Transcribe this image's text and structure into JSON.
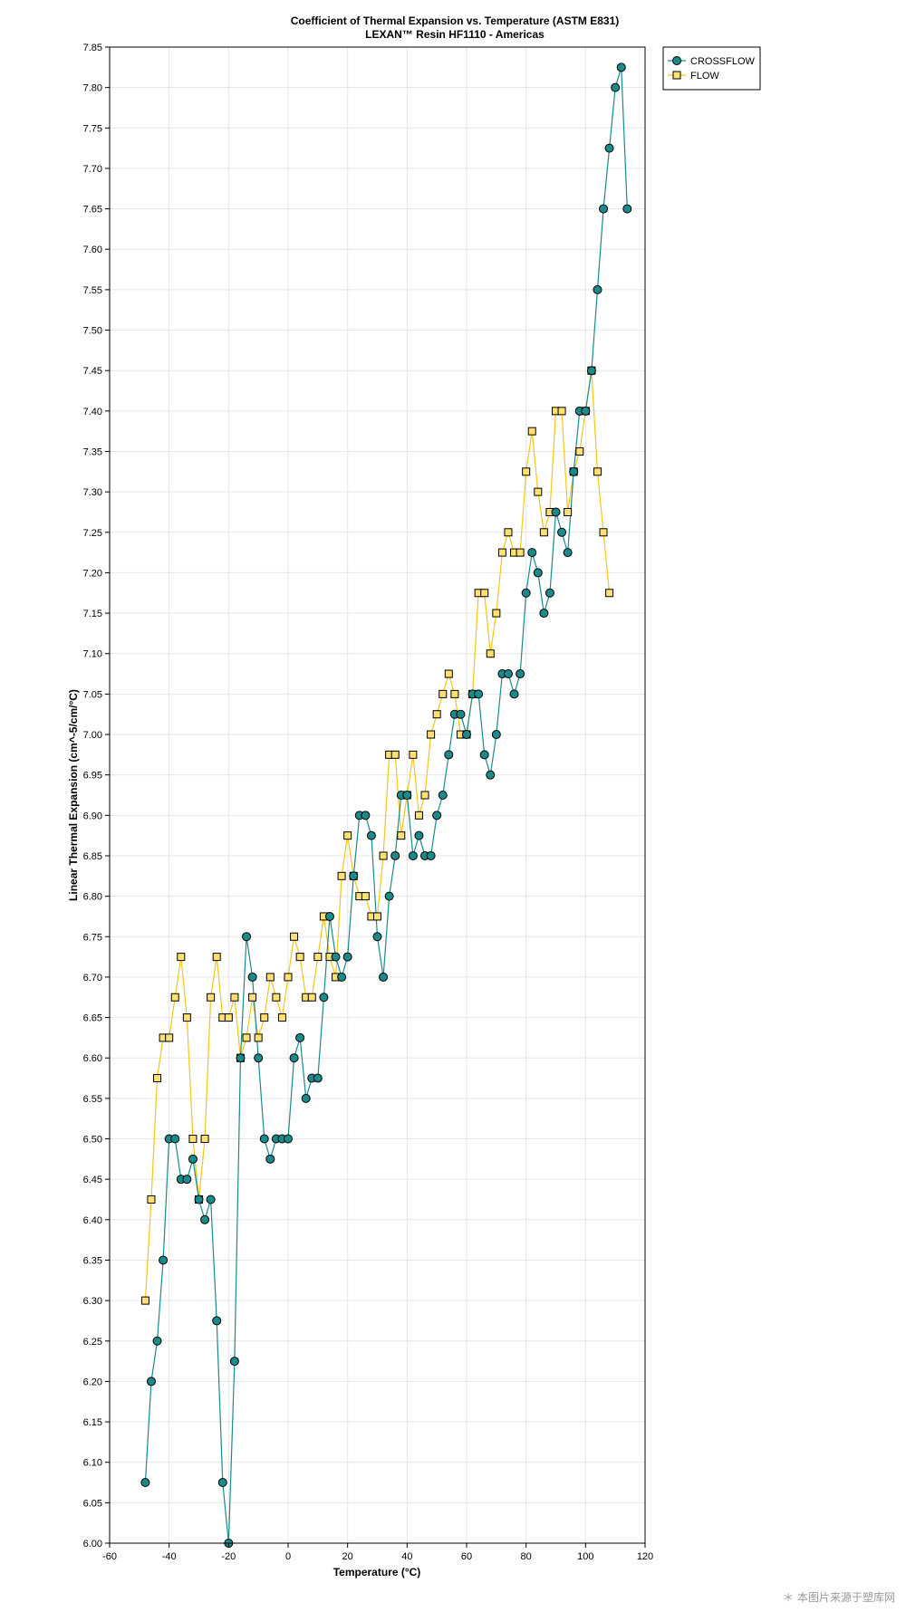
{
  "chart_data": {
    "type": "line",
    "title": "Coefficient of Thermal Expansion vs. Temperature (ASTM E831)",
    "subtitle": "LEXAN™ Resin HF1110 - Americas",
    "xlabel": "Temperature (°C)",
    "ylabel": "Linear Thermal Expansion (cm^-5/cm/°C)",
    "xlim": [
      -60,
      120
    ],
    "ylim": [
      6.0,
      7.85
    ],
    "x_ticks": [
      -60,
      -40,
      -20,
      0,
      20,
      40,
      60,
      80,
      100,
      120
    ],
    "y_ticks": [
      6.0,
      6.05,
      6.1,
      6.15,
      6.2,
      6.25,
      6.3,
      6.35,
      6.4,
      6.45,
      6.5,
      6.55,
      6.6,
      6.65,
      6.7,
      6.75,
      6.8,
      6.85,
      6.9,
      6.95,
      7.0,
      7.05,
      7.1,
      7.15,
      7.2,
      7.25,
      7.3,
      7.35,
      7.4,
      7.45,
      7.5,
      7.55,
      7.6,
      7.65,
      7.7,
      7.75,
      7.8,
      7.85
    ],
    "grid": true,
    "legend_position": "top-right outside",
    "series": [
      {
        "name": "CROSSFLOW",
        "color": "#1a8a8a",
        "marker": "circle",
        "points": [
          [
            -48,
            6.075
          ],
          [
            -46,
            6.2
          ],
          [
            -44,
            6.25
          ],
          [
            -42,
            6.35
          ],
          [
            -40,
            6.5
          ],
          [
            -38,
            6.5
          ],
          [
            -36,
            6.45
          ],
          [
            -34,
            6.45
          ],
          [
            -32,
            6.475
          ],
          [
            -30,
            6.425
          ],
          [
            -28,
            6.4
          ],
          [
            -26,
            6.425
          ],
          [
            -24,
            6.275
          ],
          [
            -22,
            6.075
          ],
          [
            -20,
            6.0
          ],
          [
            -18,
            6.225
          ],
          [
            -16,
            6.6
          ],
          [
            -14,
            6.75
          ],
          [
            -12,
            6.7
          ],
          [
            -10,
            6.6
          ],
          [
            -8,
            6.5
          ],
          [
            -6,
            6.475
          ],
          [
            -4,
            6.5
          ],
          [
            -2,
            6.5
          ],
          [
            0,
            6.5
          ],
          [
            2,
            6.6
          ],
          [
            4,
            6.625
          ],
          [
            6,
            6.55
          ],
          [
            8,
            6.575
          ],
          [
            10,
            6.575
          ],
          [
            12,
            6.675
          ],
          [
            14,
            6.775
          ],
          [
            16,
            6.725
          ],
          [
            18,
            6.7
          ],
          [
            20,
            6.725
          ],
          [
            22,
            6.825
          ],
          [
            24,
            6.9
          ],
          [
            26,
            6.9
          ],
          [
            28,
            6.875
          ],
          [
            30,
            6.75
          ],
          [
            32,
            6.7
          ],
          [
            34,
            6.8
          ],
          [
            36,
            6.85
          ],
          [
            38,
            6.925
          ],
          [
            40,
            6.925
          ],
          [
            42,
            6.85
          ],
          [
            44,
            6.875
          ],
          [
            46,
            6.85
          ],
          [
            48,
            6.85
          ],
          [
            50,
            6.9
          ],
          [
            52,
            6.925
          ],
          [
            54,
            6.975
          ],
          [
            56,
            7.025
          ],
          [
            58,
            7.025
          ],
          [
            60,
            7.0
          ],
          [
            62,
            7.05
          ],
          [
            64,
            7.05
          ],
          [
            66,
            6.975
          ],
          [
            68,
            6.95
          ],
          [
            70,
            7.0
          ],
          [
            72,
            7.075
          ],
          [
            74,
            7.075
          ],
          [
            76,
            7.05
          ],
          [
            78,
            7.075
          ],
          [
            80,
            7.175
          ],
          [
            82,
            7.225
          ],
          [
            84,
            7.2
          ],
          [
            86,
            7.15
          ],
          [
            88,
            7.175
          ],
          [
            90,
            7.275
          ],
          [
            92,
            7.25
          ],
          [
            94,
            7.225
          ],
          [
            96,
            7.325
          ],
          [
            98,
            7.4
          ],
          [
            100,
            7.4
          ],
          [
            102,
            7.45
          ],
          [
            104,
            7.55
          ],
          [
            106,
            7.65
          ],
          [
            108,
            7.725
          ],
          [
            110,
            7.8
          ],
          [
            112,
            7.825
          ],
          [
            114,
            7.65
          ]
        ]
      },
      {
        "name": "FLOW",
        "color": "#f5c518",
        "marker": "square",
        "points": [
          [
            -48,
            6.3
          ],
          [
            -46,
            6.425
          ],
          [
            -44,
            6.575
          ],
          [
            -42,
            6.625
          ],
          [
            -40,
            6.625
          ],
          [
            -38,
            6.675
          ],
          [
            -36,
            6.725
          ],
          [
            -34,
            6.65
          ],
          [
            -32,
            6.5
          ],
          [
            -30,
            6.425
          ],
          [
            -28,
            6.5
          ],
          [
            -26,
            6.675
          ],
          [
            -24,
            6.725
          ],
          [
            -22,
            6.65
          ],
          [
            -20,
            6.65
          ],
          [
            -18,
            6.675
          ],
          [
            -16,
            6.6
          ],
          [
            -14,
            6.625
          ],
          [
            -12,
            6.675
          ],
          [
            -10,
            6.625
          ],
          [
            -8,
            6.65
          ],
          [
            -6,
            6.7
          ],
          [
            -4,
            6.675
          ],
          [
            -2,
            6.65
          ],
          [
            0,
            6.7
          ],
          [
            2,
            6.75
          ],
          [
            4,
            6.725
          ],
          [
            6,
            6.675
          ],
          [
            8,
            6.675
          ],
          [
            10,
            6.725
          ],
          [
            12,
            6.775
          ],
          [
            14,
            6.725
          ],
          [
            16,
            6.7
          ],
          [
            18,
            6.825
          ],
          [
            20,
            6.875
          ],
          [
            22,
            6.825
          ],
          [
            24,
            6.8
          ],
          [
            26,
            6.8
          ],
          [
            28,
            6.775
          ],
          [
            30,
            6.775
          ],
          [
            32,
            6.85
          ],
          [
            34,
            6.975
          ],
          [
            36,
            6.975
          ],
          [
            38,
            6.875
          ],
          [
            40,
            6.925
          ],
          [
            42,
            6.975
          ],
          [
            44,
            6.9
          ],
          [
            46,
            6.925
          ],
          [
            48,
            7.0
          ],
          [
            50,
            7.025
          ],
          [
            52,
            7.05
          ],
          [
            54,
            7.075
          ],
          [
            56,
            7.05
          ],
          [
            58,
            7.0
          ],
          [
            60,
            7.0
          ],
          [
            62,
            7.05
          ],
          [
            64,
            7.175
          ],
          [
            66,
            7.175
          ],
          [
            68,
            7.1
          ],
          [
            70,
            7.15
          ],
          [
            72,
            7.225
          ],
          [
            74,
            7.25
          ],
          [
            76,
            7.225
          ],
          [
            78,
            7.225
          ],
          [
            80,
            7.325
          ],
          [
            82,
            7.375
          ],
          [
            84,
            7.3
          ],
          [
            86,
            7.25
          ],
          [
            88,
            7.275
          ],
          [
            90,
            7.4
          ],
          [
            92,
            7.4
          ],
          [
            94,
            7.275
          ],
          [
            96,
            7.325
          ],
          [
            98,
            7.35
          ],
          [
            100,
            7.4
          ],
          [
            102,
            7.45
          ],
          [
            104,
            7.325
          ],
          [
            106,
            7.25
          ],
          [
            108,
            7.175
          ]
        ]
      }
    ]
  },
  "watermark": "＊ 本图片来源于塑库网"
}
